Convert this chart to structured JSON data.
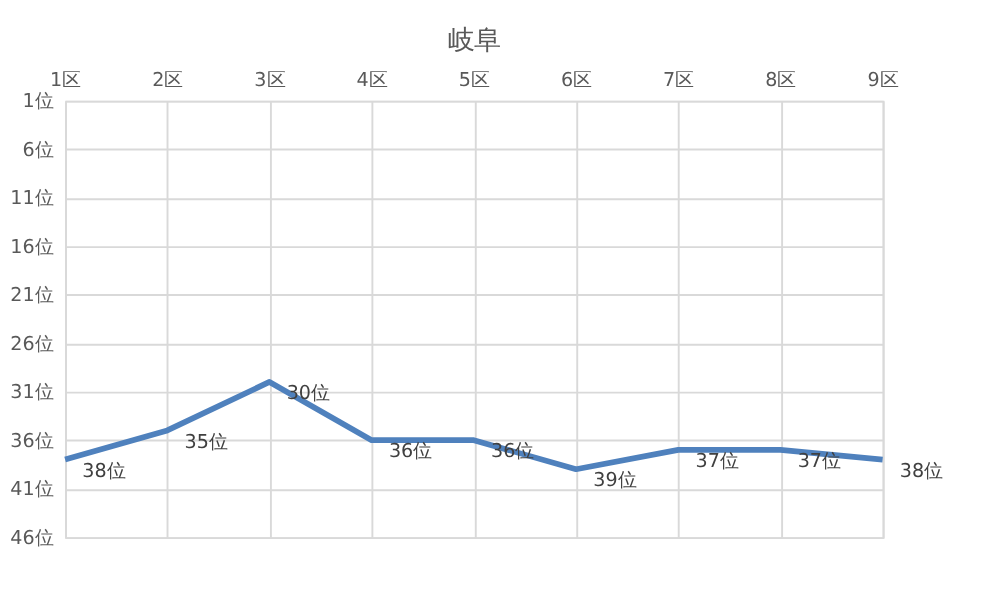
{
  "chart_data": {
    "type": "line",
    "title": "岐阜",
    "categories": [
      "1区",
      "2区",
      "3区",
      "4区",
      "5区",
      "6区",
      "7区",
      "8区",
      "9区"
    ],
    "series": [
      {
        "color": "#4f81bd",
        "values": [
          38,
          35,
          30,
          36,
          36,
          39,
          37,
          37,
          38
        ],
        "value_labels": [
          "38位",
          "35位",
          "30位",
          "36位",
          "36位",
          "39位",
          "37位",
          "37位",
          "38位"
        ]
      }
    ],
    "ylim": [
      46,
      1
    ],
    "yticks": [
      {
        "value": 1,
        "label": "1位"
      },
      {
        "value": 6,
        "label": "6位"
      },
      {
        "value": 11,
        "label": "11位"
      },
      {
        "value": 16,
        "label": "16位"
      },
      {
        "value": 21,
        "label": "21位"
      },
      {
        "value": 26,
        "label": "26位"
      },
      {
        "value": 31,
        "label": "31位"
      },
      {
        "value": 36,
        "label": "36位"
      },
      {
        "value": 41,
        "label": "41位"
      },
      {
        "value": 46,
        "label": "46位"
      }
    ],
    "grid": true,
    "marker": "none",
    "line_style": "solid"
  }
}
